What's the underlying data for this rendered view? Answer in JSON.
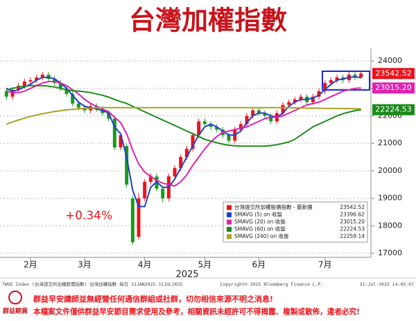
{
  "chart_data": {
    "type": "candlestick",
    "title": "台灣加權指數",
    "x_label": "2025",
    "annotation": "+0.34%",
    "xlim": [
      -0.5,
      59.5
    ],
    "xticks": [
      {
        "value": 4,
        "label": "2月"
      },
      {
        "value": 13,
        "label": "3月"
      },
      {
        "value": 23,
        "label": "4月"
      },
      {
        "value": 33,
        "label": "5月"
      },
      {
        "value": 42,
        "label": "6月"
      },
      {
        "value": 53,
        "label": "7月"
      }
    ],
    "ylim": [
      16850,
      24330
    ],
    "yticks": [
      17000,
      18000,
      19000,
      20000,
      21000,
      22000,
      23000,
      24000
    ],
    "grid": true,
    "up_color": "#e8141c",
    "down_color": "#1a9a1a",
    "price_name": "台灣證交所加權股價指數 - 最新價",
    "price_label": "23542.52",
    "open": [
      22900,
      22700,
      22950,
      23100,
      23250,
      23300,
      23400,
      23500,
      23350,
      23200,
      23000,
      22800,
      22450,
      22300,
      22200,
      22350,
      22250,
      22100,
      21900,
      20850,
      20900,
      19000,
      17600,
      19000,
      19600,
      19800,
      19350,
      19000,
      19800,
      20100,
      20500,
      20800,
      21300,
      21800,
      21700,
      21600,
      21500,
      21300,
      21100,
      21500,
      21700,
      22000,
      22200,
      22100,
      22000,
      21800,
      22100,
      22400,
      22500,
      22600,
      22700,
      22500,
      22700,
      22900,
      23200,
      23300,
      23400,
      23300,
      23500,
      23400
    ],
    "high": [
      23000,
      23050,
      23200,
      23350,
      23400,
      23500,
      23600,
      23600,
      23450,
      23300,
      23100,
      22900,
      22550,
      22400,
      22450,
      22450,
      22350,
      22200,
      22000,
      21400,
      21000,
      19100,
      19200,
      19700,
      19900,
      19900,
      19450,
      19900,
      20200,
      20600,
      20900,
      21400,
      21900,
      21900,
      21800,
      21700,
      21600,
      21400,
      21600,
      21800,
      22100,
      22300,
      22300,
      22200,
      22100,
      22200,
      22500,
      22600,
      22700,
      22800,
      22800,
      22800,
      23000,
      23300,
      23400,
      23500,
      23500,
      23600,
      23600,
      23650
    ],
    "low": [
      22600,
      22600,
      22850,
      23000,
      23150,
      23200,
      23300,
      23250,
      23100,
      22900,
      22700,
      22350,
      22200,
      22100,
      22100,
      22150,
      22000,
      21800,
      20750,
      20750,
      19400,
      17300,
      17500,
      18900,
      19500,
      19250,
      18850,
      18900,
      19700,
      20000,
      20400,
      20700,
      21200,
      21600,
      21500,
      21400,
      21200,
      21000,
      21000,
      21400,
      21600,
      21900,
      22000,
      21900,
      21700,
      21700,
      22000,
      22300,
      22400,
      22500,
      22400,
      22400,
      22600,
      22800,
      23100,
      23200,
      23200,
      23200,
      23300,
      23350
    ],
    "close": [
      22700,
      22950,
      23100,
      23250,
      23300,
      23400,
      23500,
      23350,
      23200,
      23000,
      22800,
      22450,
      22300,
      22200,
      22350,
      22250,
      22100,
      21900,
      20850,
      21300,
      19500,
      17400,
      19000,
      19600,
      19800,
      19350,
      19000,
      19800,
      20100,
      20500,
      20800,
      21300,
      21800,
      21700,
      21600,
      21500,
      21300,
      21100,
      21500,
      21700,
      22000,
      22200,
      22100,
      22000,
      21800,
      22100,
      22400,
      22500,
      22600,
      22700,
      22500,
      22700,
      22900,
      23200,
      23300,
      23400,
      23300,
      23500,
      23400,
      23542.52
    ],
    "series": [
      {
        "name": "SMAVG (5)  on 收盤",
        "color": "#1f3fd0",
        "last_label": "23396.62",
        "values": [
          23000,
          22900,
          22950,
          23050,
          23150,
          23300,
          23400,
          23400,
          23350,
          23200,
          23000,
          22750,
          22500,
          22350,
          22300,
          22250,
          22200,
          22100,
          21600,
          21350,
          20500,
          19300,
          18700,
          18700,
          19400,
          19600,
          19400,
          19400,
          19700,
          20100,
          20500,
          20900,
          21300,
          21600,
          21700,
          21600,
          21450,
          21300,
          21300,
          21450,
          21750,
          22000,
          22100,
          22100,
          22000,
          21950,
          22100,
          22350,
          22500,
          22600,
          22600,
          22650,
          22750,
          22950,
          23150,
          23300,
          23350,
          23400,
          23420,
          23396.62
        ]
      },
      {
        "name": "SMAVG (20)  on 收盤",
        "color": "#e020b0",
        "last_label": "23015.20",
        "values": [
          22900,
          22850,
          22850,
          22900,
          23000,
          23100,
          23200,
          23250,
          23250,
          23200,
          23100,
          22950,
          22800,
          22600,
          22450,
          22350,
          22250,
          22150,
          21950,
          21750,
          21350,
          20750,
          20250,
          19950,
          19800,
          19650,
          19550,
          19500,
          19450,
          19600,
          19850,
          20200,
          20500,
          20800,
          21050,
          21250,
          21400,
          21450,
          21500,
          21550,
          21600,
          21700,
          21800,
          21900,
          21950,
          21950,
          22000,
          22100,
          22200,
          22300,
          22400,
          22450,
          22500,
          22600,
          22700,
          22800,
          22900,
          22950,
          23000,
          23015.2
        ]
      },
      {
        "name": "SMAVG (60)  on 收盤",
        "color": "#1a8a1a",
        "last_label": "22224.53",
        "values": [
          22950,
          23000,
          23050,
          23080,
          23100,
          23100,
          23100,
          23080,
          23050,
          23000,
          22950,
          22920,
          22900,
          22880,
          22850,
          22800,
          22750,
          22680,
          22600,
          22520,
          22450,
          22350,
          22250,
          22150,
          22050,
          21950,
          21850,
          21750,
          21650,
          21550,
          21450,
          21350,
          21250,
          21150,
          21080,
          21020,
          20970,
          20930,
          20910,
          20900,
          20900,
          20900,
          20900,
          20900,
          20920,
          20950,
          21000,
          21050,
          21150,
          21300,
          21450,
          21600,
          21700,
          21800,
          21900,
          22000,
          22080,
          22140,
          22190,
          22224.53
        ]
      },
      {
        "name": "SMAVG (240)  on 收盤",
        "color": "#a8a020",
        "last_label": "22259.14",
        "values": [
          21700,
          21780,
          21850,
          21920,
          21980,
          22030,
          22080,
          22120,
          22160,
          22190,
          22220,
          22240,
          22260,
          22270,
          22280,
          22290,
          22300,
          22300,
          22300,
          22300,
          22300,
          22300,
          22300,
          22300,
          22300,
          22300,
          22300,
          22300,
          22300,
          22300,
          22300,
          22300,
          22300,
          22300,
          22300,
          22300,
          22300,
          22300,
          22300,
          22300,
          22300,
          22300,
          22300,
          22300,
          22300,
          22300,
          22300,
          22300,
          22290,
          22290,
          22280,
          22280,
          22280,
          22270,
          22270,
          22270,
          22265,
          22265,
          22260,
          22259.14
        ]
      }
    ],
    "footer": {
      "source": "TWSE Index (台灣證交所加權股價指數)  台灣加權指數  每日 31JAN2025-31JUL2025",
      "copyright": "Copyright© 2025 Bloomberg Finance L.P.",
      "timestamp": "31-Jul-2025 14:05:07"
    },
    "brand": "群益期貨",
    "notices": [
      "群益早安講師並無經營任何通信群組或社群，切勿相信來源不明之消息!",
      "本檔案文件僅供群益早安節目需求使用及參考，相關資訊未經許可不得揭露、複製或散佈，違者必究!"
    ]
  }
}
